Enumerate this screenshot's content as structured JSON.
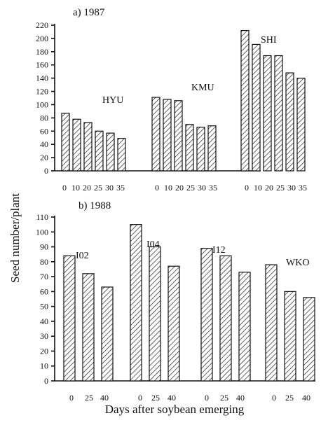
{
  "ylabel": "Seed number/plant",
  "xlabel": "Days after soybean emerging",
  "chart_data": [
    {
      "type": "bar",
      "title": "a) 1987",
      "ylim": [
        0,
        220
      ],
      "yticks": [
        0,
        20,
        40,
        60,
        80,
        100,
        120,
        140,
        160,
        180,
        200,
        220
      ],
      "groups": [
        {
          "name": "HYU",
          "categories": [
            "0",
            "10",
            "20",
            "25",
            "30",
            "35"
          ],
          "values": [
            87,
            78,
            73,
            60,
            57,
            49
          ]
        },
        {
          "name": "KMU",
          "categories": [
            "0",
            "10",
            "20",
            "25",
            "30",
            "35"
          ],
          "values": [
            111,
            108,
            106,
            70,
            66,
            68
          ]
        },
        {
          "name": "SHI",
          "categories": [
            "0",
            "10",
            "20",
            "25",
            "30",
            "35"
          ],
          "values": [
            212,
            191,
            174,
            174,
            148,
            140
          ]
        }
      ]
    },
    {
      "type": "bar",
      "title": "b) 1988",
      "ylim": [
        0,
        110
      ],
      "yticks": [
        0,
        10,
        20,
        30,
        40,
        50,
        60,
        70,
        80,
        90,
        100,
        110
      ],
      "groups": [
        {
          "name": "I02",
          "categories": [
            "0",
            "25",
            "40"
          ],
          "values": [
            84,
            72,
            63
          ]
        },
        {
          "name": "I04",
          "categories": [
            "0",
            "25",
            "40"
          ],
          "values": [
            105,
            90,
            77
          ]
        },
        {
          "name": "I12",
          "categories": [
            "0",
            "25",
            "40"
          ],
          "values": [
            89,
            84,
            73
          ]
        },
        {
          "name": "WKO",
          "categories": [
            "0",
            "25",
            "40"
          ],
          "values": [
            78,
            60,
            56
          ]
        }
      ]
    }
  ]
}
